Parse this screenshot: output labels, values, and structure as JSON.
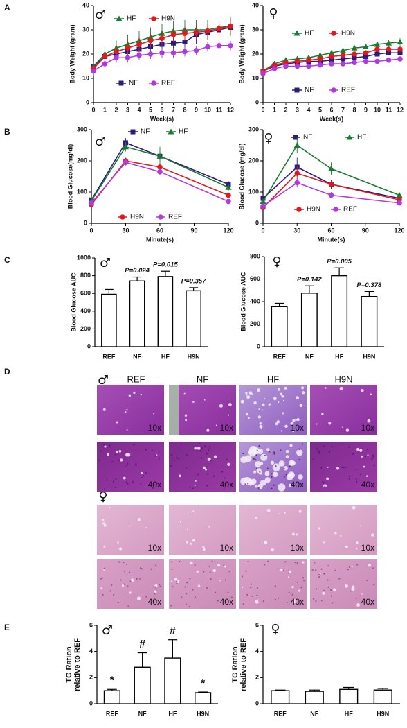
{
  "chart_data": [
    {
      "type": "line",
      "panel": "A",
      "symbol": "♂",
      "x_label": "Week(s)",
      "y_label": "Body Weight (gram)",
      "x": [
        0,
        1,
        2,
        3,
        4,
        5,
        6,
        7,
        8,
        9,
        10,
        11,
        12
      ],
      "xlim": [
        0,
        12
      ],
      "xticks": [
        0,
        1,
        2,
        3,
        4,
        5,
        6,
        7,
        8,
        9,
        10,
        11,
        12
      ],
      "ylim": [
        0,
        40
      ],
      "yticks": [
        0,
        10,
        20,
        30,
        40
      ],
      "series": [
        {
          "name": "NF",
          "color": "#2e1a78",
          "marker": "square",
          "values": [
            15,
            19,
            20,
            21,
            22,
            23,
            24,
            24.5,
            25,
            28,
            29,
            30,
            31
          ],
          "errors": [
            2,
            3,
            3,
            3,
            3,
            3,
            3,
            4,
            4,
            4,
            3,
            3,
            3
          ]
        },
        {
          "name": "HF",
          "color": "#1a7a32",
          "marker": "triangle",
          "values": [
            15,
            20,
            22.5,
            24,
            25.5,
            27,
            28.5,
            29.5,
            30,
            30,
            30,
            31,
            31.5
          ],
          "errors": [
            2,
            3,
            3,
            4,
            4,
            4,
            4,
            4,
            4,
            4,
            4,
            4,
            4
          ]
        },
        {
          "name": "H9N",
          "color": "#e0191f",
          "marker": "circle",
          "values": [
            14,
            19,
            21,
            22.5,
            24,
            25.5,
            26.5,
            28,
            28.5,
            29,
            29.5,
            30.5,
            31.5
          ],
          "errors": [
            2,
            2,
            2,
            3,
            3,
            3,
            3,
            3,
            3,
            3,
            3,
            3,
            3
          ]
        },
        {
          "name": "REF",
          "color": "#b03ae0",
          "marker": "circle",
          "values": [
            13,
            16,
            18.5,
            18.5,
            19.5,
            20,
            20.5,
            20.5,
            21,
            21.5,
            23,
            23.5,
            23.5
          ],
          "errors": [
            2,
            2,
            2,
            2,
            2,
            2,
            2,
            2,
            2,
            2,
            2,
            2,
            2
          ]
        }
      ]
    },
    {
      "type": "line",
      "symbol": "♀",
      "x_label": "Week(s)",
      "y_label": "Body Weight (gram)",
      "x": [
        0,
        1,
        2,
        3,
        4,
        5,
        6,
        7,
        8,
        9,
        10,
        11,
        12
      ],
      "xlim": [
        0,
        12
      ],
      "xticks": [
        0,
        1,
        2,
        3,
        4,
        5,
        6,
        7,
        8,
        9,
        10,
        11,
        12
      ],
      "ylim": [
        0,
        40
      ],
      "yticks": [
        0,
        10,
        20,
        30,
        40
      ],
      "series": [
        {
          "name": "NF",
          "color": "#2e1a78",
          "marker": "square",
          "values": [
            13,
            15,
            16,
            16.5,
            17,
            17,
            17.5,
            18,
            18.5,
            19,
            20,
            20.5,
            20.5
          ],
          "errors": [
            1,
            1,
            1,
            1,
            1,
            1,
            1,
            1,
            1,
            1,
            1,
            1,
            1
          ]
        },
        {
          "name": "HF",
          "color": "#1a7a32",
          "marker": "triangle",
          "values": [
            13,
            16,
            17.5,
            18,
            18.5,
            19.5,
            20.5,
            21.5,
            22.5,
            23,
            24,
            24.5,
            25
          ],
          "errors": [
            1,
            1,
            1,
            1,
            1,
            1,
            1,
            1,
            1,
            1,
            1,
            1.5,
            1.5
          ]
        },
        {
          "name": "H9N",
          "color": "#e0191f",
          "marker": "circle",
          "values": [
            13,
            15.5,
            16.5,
            17,
            17.5,
            18,
            19,
            19.5,
            20,
            20.5,
            22,
            22,
            22
          ],
          "errors": [
            1,
            1,
            1,
            1,
            1,
            1,
            1,
            1,
            1,
            1,
            1,
            1,
            1
          ]
        },
        {
          "name": "REF",
          "color": "#b03ae0",
          "marker": "circle",
          "values": [
            12,
            14,
            15,
            15,
            15,
            15.5,
            16,
            16,
            16.5,
            17,
            17,
            17.5,
            18
          ],
          "errors": [
            1,
            1,
            1,
            1,
            1,
            1,
            1,
            1,
            1,
            1,
            1,
            1,
            1
          ]
        }
      ]
    },
    {
      "type": "line",
      "panel": "B",
      "symbol": "♂",
      "x_label": "Minute(s)",
      "y_label": "Blood Glucose(mg/dl)",
      "x": [
        0,
        30,
        60,
        120
      ],
      "xlim": [
        0,
        120
      ],
      "xticks": [
        0,
        30,
        60,
        90,
        120
      ],
      "ylim": [
        0,
        300
      ],
      "yticks": [
        0,
        100,
        200,
        300
      ],
      "series": [
        {
          "name": "NF",
          "color": "#2e1a78",
          "marker": "square",
          "values": [
            75,
            258,
            215,
            125
          ],
          "errors": [
            10,
            15,
            15,
            10
          ]
        },
        {
          "name": "HF",
          "color": "#1a7a32",
          "marker": "triangle",
          "values": [
            72,
            245,
            215,
            115
          ],
          "errors": [
            10,
            15,
            30,
            10
          ]
        },
        {
          "name": "H9N",
          "color": "#e0191f",
          "marker": "circle",
          "values": [
            60,
            200,
            180,
            90
          ],
          "errors": [
            10,
            10,
            10,
            8
          ]
        },
        {
          "name": "REF",
          "color": "#b03ae0",
          "marker": "circle",
          "values": [
            65,
            195,
            165,
            70
          ],
          "errors": [
            10,
            10,
            10,
            8
          ]
        }
      ]
    },
    {
      "type": "line",
      "symbol": "♀",
      "x_label": "Minute(s)",
      "y_label": "Blood Glucose (mg/dl)",
      "x": [
        0,
        30,
        60,
        120
      ],
      "xlim": [
        0,
        120
      ],
      "xticks": [
        0,
        30,
        60,
        90,
        120
      ],
      "ylim": [
        0,
        300
      ],
      "yticks": [
        0,
        100,
        200,
        300
      ],
      "series": [
        {
          "name": "NF",
          "color": "#2e1a78",
          "marker": "square",
          "values": [
            80,
            180,
            125,
            80
          ],
          "errors": [
            10,
            30,
            15,
            5
          ]
        },
        {
          "name": "HF",
          "color": "#1a7a32",
          "marker": "triangle",
          "values": [
            70,
            250,
            175,
            90
          ],
          "errors": [
            10,
            25,
            20,
            5
          ]
        },
        {
          "name": "H9N",
          "color": "#e0191f",
          "marker": "circle",
          "values": [
            50,
            160,
            125,
            75
          ],
          "errors": [
            5,
            25,
            10,
            5
          ]
        },
        {
          "name": "REF",
          "color": "#b03ae0",
          "marker": "circle",
          "values": [
            55,
            130,
            90,
            65
          ],
          "errors": [
            5,
            15,
            10,
            5
          ]
        }
      ]
    },
    {
      "type": "bar",
      "panel": "C",
      "symbol": "♂",
      "y_label": "Blood Glucose AUC",
      "categories": [
        "REF",
        "NF",
        "HF",
        "H9N"
      ],
      "values": [
        590,
        740,
        790,
        630
      ],
      "errors": [
        55,
        45,
        60,
        35
      ],
      "annotations": [
        null,
        "P=0.024",
        "P=0.015",
        "P=0.357"
      ],
      "color": "#ffffff",
      "ylim": [
        0,
        1000
      ],
      "yticks": [
        0,
        200,
        400,
        600,
        800,
        1000
      ]
    },
    {
      "type": "bar",
      "symbol": "♀",
      "y_label": "Blood Glucose AUC",
      "categories": [
        "REF",
        "NF",
        "HF",
        "H9N"
      ],
      "values": [
        355,
        475,
        630,
        445
      ],
      "errors": [
        30,
        65,
        70,
        45
      ],
      "annotations": [
        null,
        "P=0.142",
        "P=0.005",
        "P=0.378"
      ],
      "color": "#ffffff",
      "ylim": [
        0,
        800
      ],
      "yticks": [
        0,
        200,
        400,
        600,
        800
      ]
    },
    {
      "type": "bar",
      "panel": "E",
      "symbol": "♂",
      "y_label": [
        "TG Ration",
        "relative to REF"
      ],
      "categories": [
        "REF",
        "NF",
        "HF",
        "H9N"
      ],
      "values": [
        1.0,
        2.8,
        3.5,
        0.85
      ],
      "errors": [
        0.1,
        1.1,
        1.4,
        0.05
      ],
      "annotations": [
        "*",
        "#",
        "#",
        "*"
      ],
      "color": "#ffffff",
      "ylim": [
        0,
        6
      ],
      "yticks": [
        0,
        2,
        4,
        6
      ]
    },
    {
      "type": "bar",
      "symbol": "♀",
      "y_label": [
        "TG Ration",
        "relative to REF"
      ],
      "categories": [
        "REF",
        "NF",
        "HF",
        "H9N"
      ],
      "values": [
        1.0,
        0.95,
        1.1,
        1.05
      ],
      "errors": [
        0.05,
        0.1,
        0.15,
        0.12
      ],
      "annotations": [
        null,
        null,
        null,
        null
      ],
      "color": "#ffffff",
      "ylim": [
        0,
        6
      ],
      "yticks": [
        0,
        2,
        4,
        6
      ]
    }
  ],
  "panel_d": {
    "panel": "D",
    "male_symbol": "♂",
    "female_symbol": "♀",
    "columns": [
      "REF",
      "NF",
      "HF",
      "H9N"
    ],
    "magnifications": [
      "10x",
      "40x"
    ]
  }
}
